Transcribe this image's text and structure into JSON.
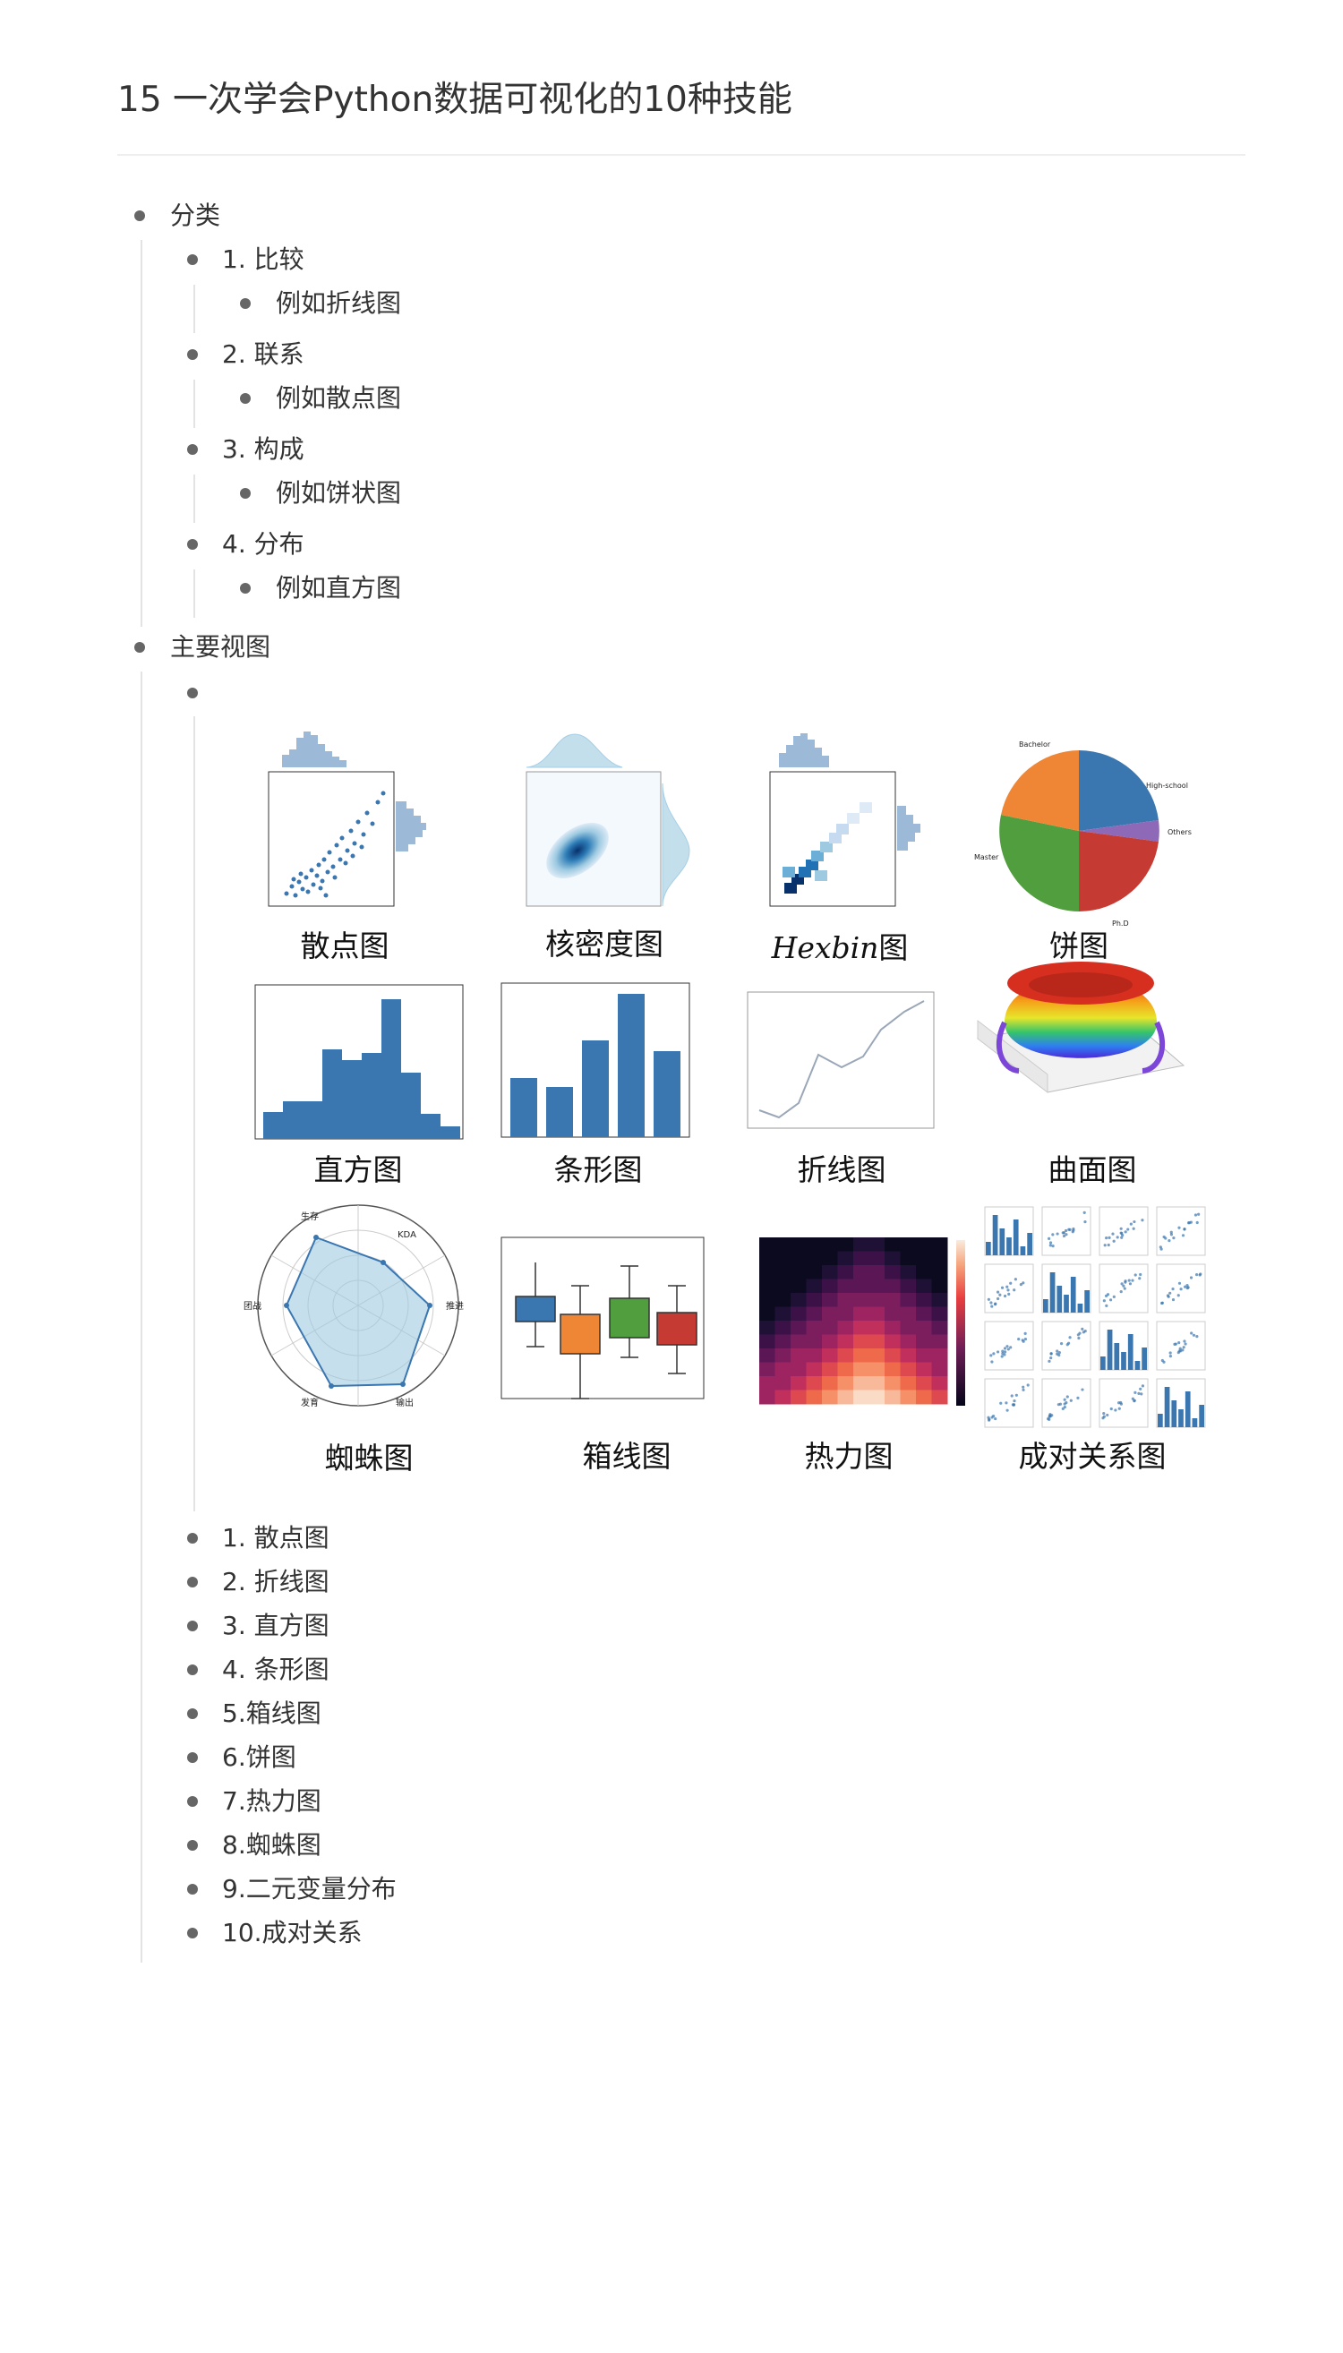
{
  "page": {
    "title": "15 一次学会Python数据可视化的10种技能"
  },
  "outline": {
    "section1": {
      "label": "分类",
      "items": [
        {
          "label": "1. 比较",
          "example": "例如折线图"
        },
        {
          "label": "2. 联系",
          "example": "例如散点图"
        },
        {
          "label": "3. 构成",
          "example": "例如饼状图"
        },
        {
          "label": "4. 分布",
          "example": "例如直方图"
        }
      ]
    },
    "section2": {
      "label": "主要视图",
      "figure": {
        "labels": {
          "scatter": "散点图",
          "kde": "核密度图",
          "hexbin_latin": "Hexbin",
          "hexbin_cn": "图",
          "pie": "饼图",
          "histogram": "直方图",
          "bar": "条形图",
          "line": "折线图",
          "surface": "曲面图",
          "radar": "蜘蛛图",
          "boxplot": "箱线图",
          "heatmap": "热力图",
          "pairplot": "成对关系图"
        },
        "pie_legend": [
          "Bachelor",
          "High-school",
          "Others",
          "Ph.D",
          "Master"
        ],
        "radar_axes": [
          "生存",
          "KDA",
          "推进",
          "输出",
          "发育",
          "团战"
        ],
        "colors": {
          "blue": "#3a76af",
          "orange": "#ef8636",
          "green": "#519e3e",
          "red": "#c53a32",
          "purple": "#8d69b8"
        }
      },
      "items": [
        "1. 散点图",
        "2. 折线图",
        "3. 直方图",
        "4. 条形图",
        "5.箱线图",
        "6.饼图",
        "7.热力图",
        "8.蜘蛛图",
        "9.二元变量分布",
        "10.成对关系"
      ]
    }
  }
}
